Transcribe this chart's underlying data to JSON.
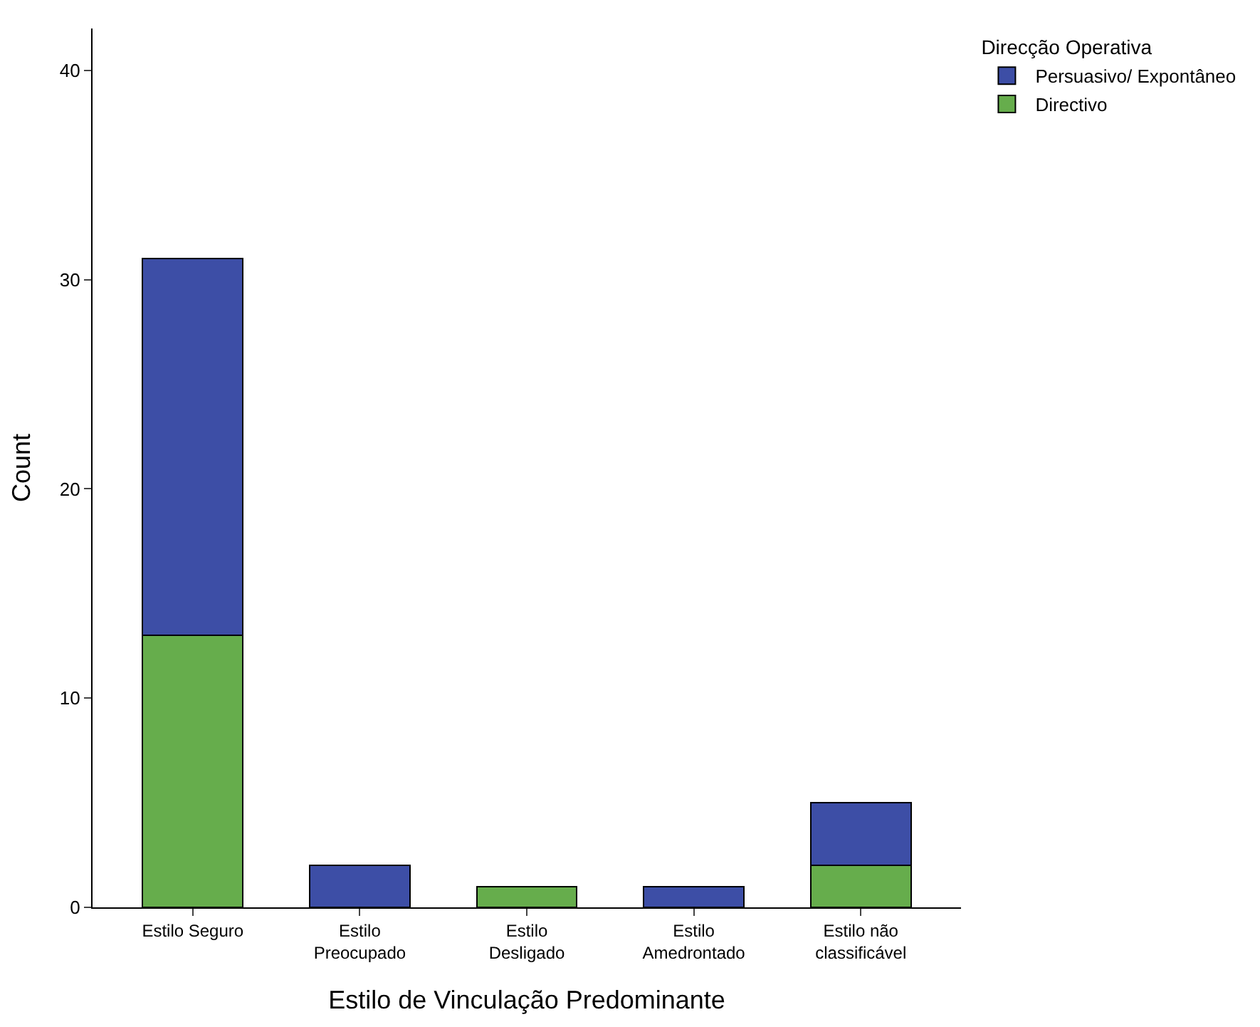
{
  "chart_data": {
    "type": "bar",
    "stacked": true,
    "xlabel": "Estilo de Vinculação Predominante",
    "ylabel": "Count",
    "legend_title": "Direcção Operativa",
    "legend": "top right",
    "categories": [
      "Estilo Seguro",
      "Estilo\nPreocupado",
      "Estilo\nDesligado",
      "Estilo\nAmedrontado",
      "Estilo não\nclassificável"
    ],
    "series": [
      {
        "name": "Directivo",
        "color": "#66ad4c",
        "values": [
          13,
          0,
          1,
          0,
          2
        ]
      },
      {
        "name": "Persuasivo/ Expontâneo",
        "color": "#3d4ea6",
        "values": [
          18,
          2,
          0,
          1,
          3
        ]
      }
    ],
    "ylim": [
      0,
      42
    ],
    "yticks": [
      0,
      10,
      20,
      30,
      40
    ],
    "grid": false
  }
}
